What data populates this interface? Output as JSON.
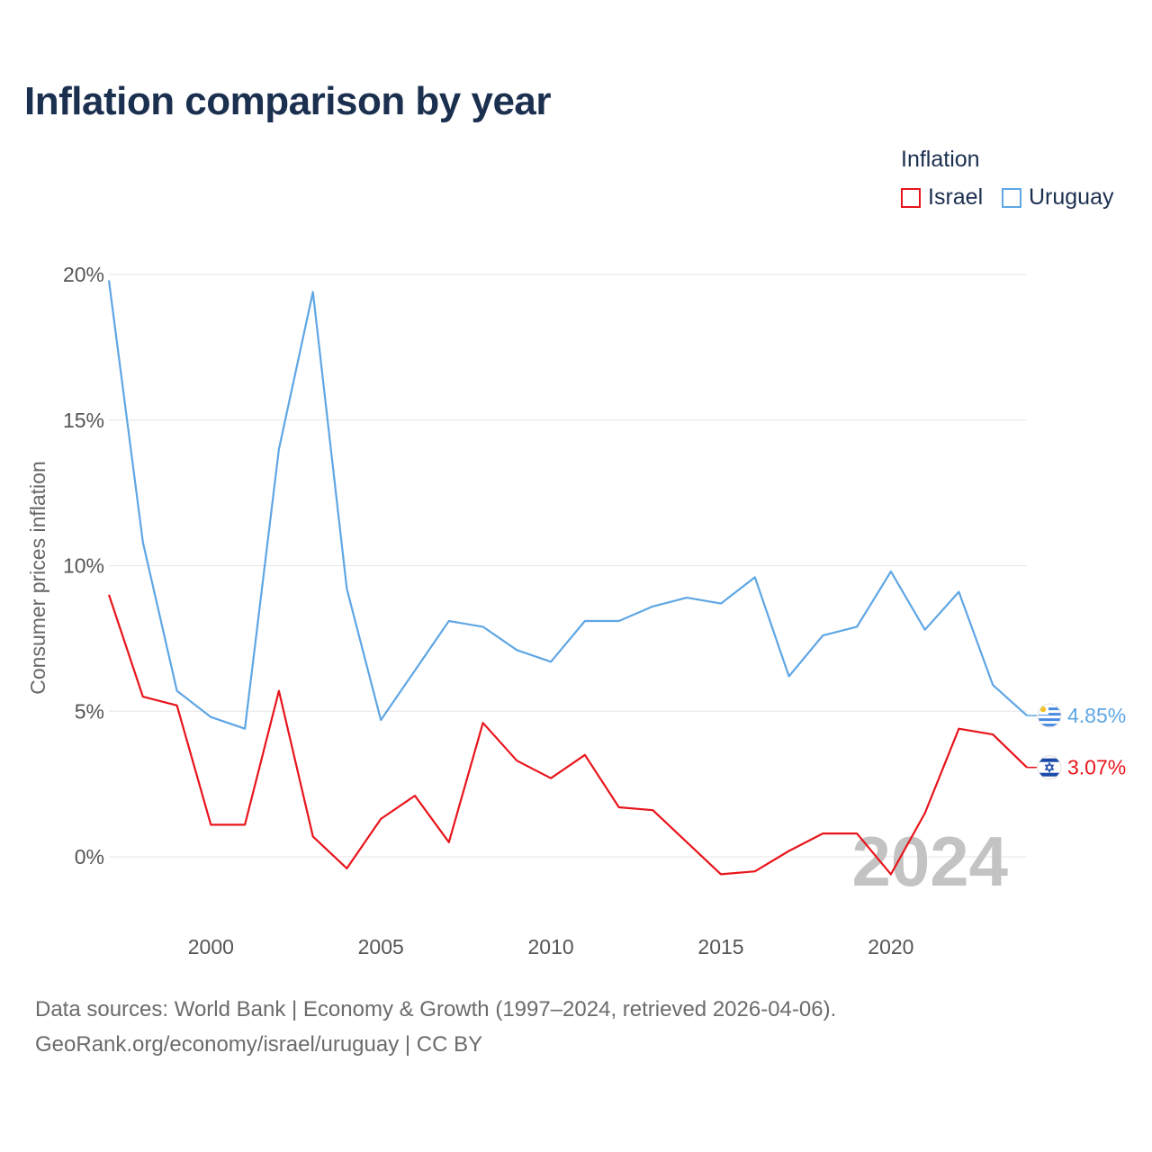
{
  "title": "Inflation comparison by year",
  "legend": {
    "title": "Inflation",
    "items": [
      {
        "name": "Israel",
        "color": "#e8141b"
      },
      {
        "name": "Uruguay",
        "color": "#5ea6e4"
      }
    ]
  },
  "source": {
    "line1": "Data sources: World Bank | Economy & Growth (1997–2024, retrieved 2026-04-06).",
    "line2": "GeoRank.org/economy/israel/uruguay | CC BY"
  },
  "chart_data": {
    "type": "line",
    "title": "Inflation comparison by year",
    "xlabel": "",
    "ylabel": "Consumer prices inflation",
    "xlim": [
      1997,
      2024
    ],
    "ylim": [
      -2,
      20
    ],
    "grid": true,
    "legend_position": "top-right",
    "x_ticks": [
      2000,
      2005,
      2010,
      2015,
      2020
    ],
    "y_ticks": [
      {
        "value": 0,
        "label": "0%"
      },
      {
        "value": 5,
        "label": "5%"
      },
      {
        "value": 10,
        "label": "10%"
      },
      {
        "value": 15,
        "label": "15%"
      },
      {
        "value": 20,
        "label": "20%"
      }
    ],
    "year_watermark": "2024",
    "x": [
      1997,
      1998,
      1999,
      2000,
      2001,
      2002,
      2003,
      2004,
      2005,
      2006,
      2007,
      2008,
      2009,
      2010,
      2011,
      2012,
      2013,
      2014,
      2015,
      2016,
      2017,
      2018,
      2019,
      2020,
      2021,
      2022,
      2023,
      2024
    ],
    "series": [
      {
        "name": "Israel",
        "color": "#e8141b",
        "end_label": "3.07%",
        "flag": "israel",
        "values": [
          9.0,
          5.5,
          5.2,
          1.1,
          1.1,
          5.7,
          0.7,
          -0.4,
          1.3,
          2.1,
          0.5,
          4.6,
          3.3,
          2.7,
          3.5,
          1.7,
          1.6,
          0.5,
          -0.6,
          -0.5,
          0.2,
          0.8,
          0.8,
          -0.6,
          1.5,
          4.4,
          4.2,
          3.07
        ]
      },
      {
        "name": "Uruguay",
        "color": "#5ea6e4",
        "end_label": "4.85%",
        "flag": "uruguay",
        "values": [
          19.8,
          10.8,
          5.7,
          4.8,
          4.4,
          14.0,
          19.4,
          9.2,
          4.7,
          6.4,
          8.1,
          7.9,
          7.1,
          6.7,
          8.1,
          8.1,
          8.6,
          8.9,
          8.7,
          9.6,
          6.2,
          7.6,
          7.9,
          9.8,
          7.8,
          9.1,
          5.9,
          4.85
        ]
      }
    ]
  }
}
